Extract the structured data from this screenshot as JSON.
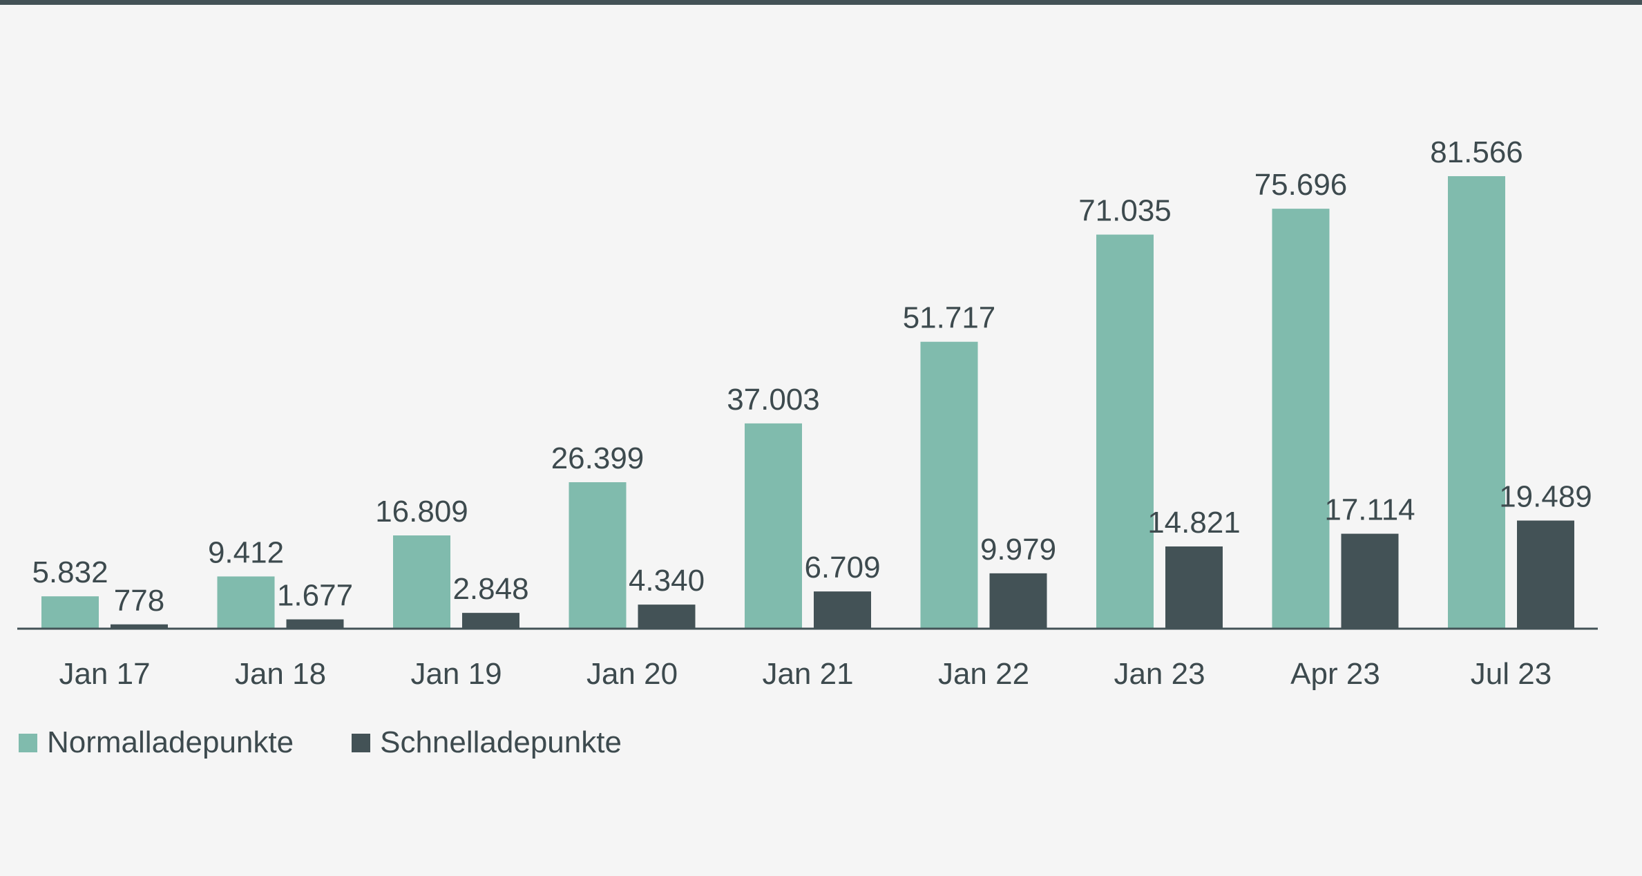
{
  "colors": {
    "normal": "#80bbad",
    "fast": "#435256",
    "text": "#3d4a4e",
    "axis": "#435256",
    "top_rule": "#435256",
    "background": "#f5f5f5"
  },
  "chart_data": {
    "type": "bar",
    "title": "",
    "xlabel": "",
    "ylabel": "",
    "ylim": [
      0,
      90000
    ],
    "categories": [
      "Jan 17",
      "Jan 18",
      "Jan 19",
      "Jan 20",
      "Jan 21",
      "Jan 22",
      "Jan 23",
      "Apr 23",
      "Jul 23"
    ],
    "series": [
      {
        "name": "Normalladepunkte",
        "values": [
          5832,
          9412,
          16809,
          26399,
          37003,
          51717,
          71035,
          75696,
          81566
        ],
        "labels": [
          "5.832",
          "9.412",
          "16.809",
          "26.399",
          "37.003",
          "51.717",
          "71.035",
          "75.696",
          "81.566"
        ]
      },
      {
        "name": "Schnelladepunkte",
        "values": [
          778,
          1677,
          2848,
          4340,
          6709,
          9979,
          14821,
          17114,
          19489
        ],
        "labels": [
          "778",
          "1.677",
          "2.848",
          "4.340",
          "6.709",
          "9.979",
          "14.821",
          "17.114",
          "19.489"
        ]
      }
    ],
    "legend_position": "bottom-left",
    "grid": false
  },
  "legend": {
    "items": [
      {
        "label": "Normalladepunkte"
      },
      {
        "label": "Schnelladepunkte"
      }
    ]
  }
}
